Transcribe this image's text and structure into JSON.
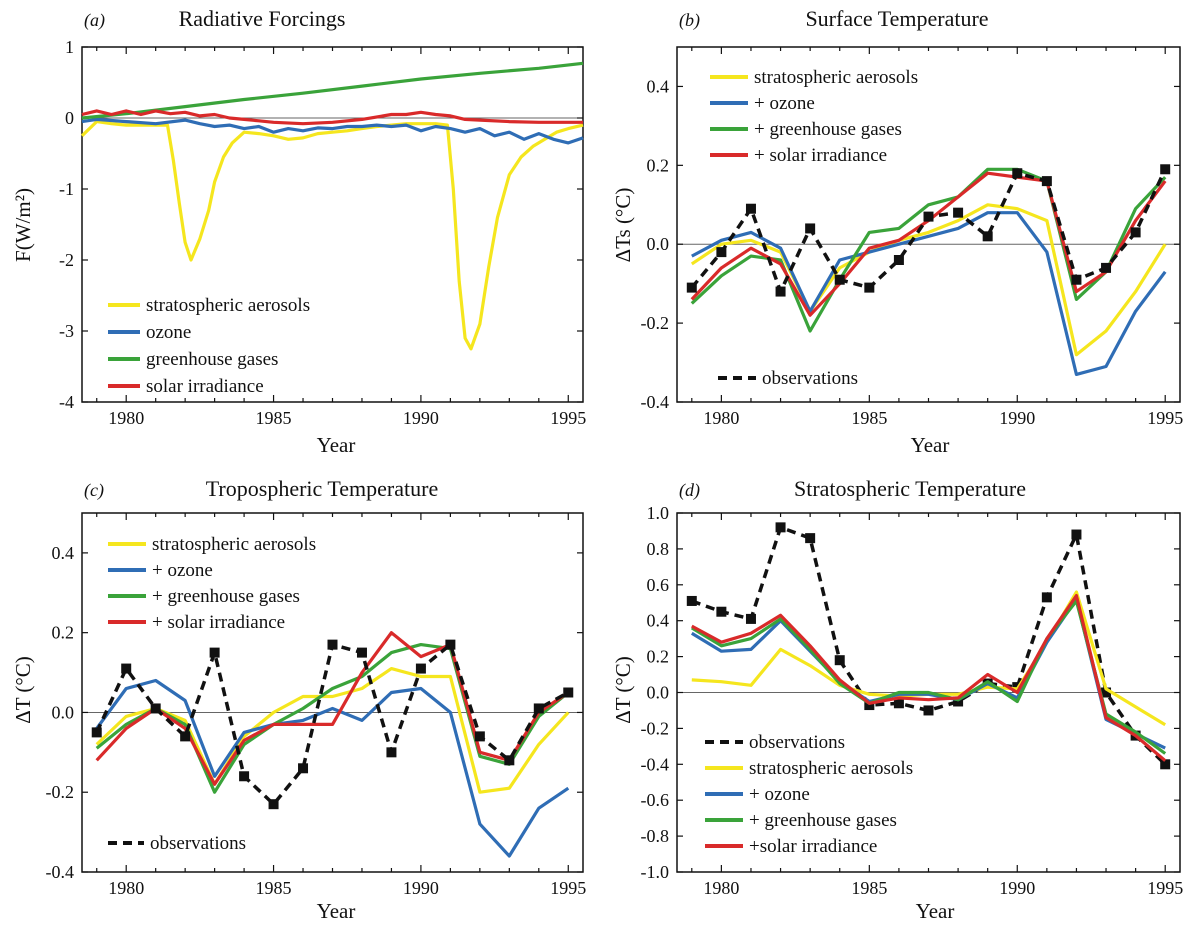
{
  "colors": {
    "yellow": "#f5e61e",
    "blue": "#2f6db5",
    "green": "#3aa33a",
    "red": "#d92a2a",
    "black": "#111111"
  },
  "chart_data": [
    {
      "panel": "(a)",
      "type": "line",
      "title": "Radiative Forcings",
      "xlabel": "Year",
      "ylabel": "F(W/m²)",
      "xlim": [
        1978.5,
        1995.5
      ],
      "ylim": [
        -4,
        1
      ],
      "xticks": [
        1980,
        1985,
        1990,
        1995
      ],
      "yticks": [
        -4,
        -3,
        -2,
        -1,
        0,
        1
      ],
      "ytick_labels": [
        "-4",
        "-3",
        "-2",
        "-1",
        "0",
        "1"
      ],
      "zero_line": true,
      "legend_position": "bottom-left",
      "series": [
        {
          "name": "stratospheric aerosols",
          "color": "#f5e61e",
          "x": [
            1978.5,
            1979,
            1979.5,
            1980,
            1980.5,
            1981,
            1981.4,
            1981.6,
            1981.8,
            1982,
            1982.2,
            1982.5,
            1982.8,
            1983,
            1983.3,
            1983.6,
            1984,
            1984.5,
            1985,
            1985.5,
            1986,
            1986.5,
            1987,
            1987.5,
            1988,
            1988.5,
            1989,
            1989.5,
            1990,
            1990.5,
            1990.9,
            1991.1,
            1991.3,
            1991.5,
            1991.7,
            1992,
            1992.3,
            1992.6,
            1993,
            1993.4,
            1993.8,
            1994.2,
            1994.6,
            1995,
            1995.5
          ],
          "y": [
            -0.25,
            -0.05,
            -0.08,
            -0.1,
            -0.1,
            -0.1,
            -0.1,
            -0.6,
            -1.2,
            -1.75,
            -2.0,
            -1.7,
            -1.3,
            -0.9,
            -0.55,
            -0.35,
            -0.2,
            -0.22,
            -0.25,
            -0.3,
            -0.28,
            -0.22,
            -0.2,
            -0.18,
            -0.15,
            -0.12,
            -0.1,
            -0.08,
            -0.08,
            -0.08,
            -0.1,
            -1.0,
            -2.3,
            -3.1,
            -3.25,
            -2.9,
            -2.1,
            -1.4,
            -0.8,
            -0.55,
            -0.4,
            -0.3,
            -0.2,
            -0.15,
            -0.1
          ]
        },
        {
          "name": "ozone",
          "color": "#2f6db5",
          "x": [
            1978.5,
            1979,
            1980,
            1981,
            1982,
            1982.5,
            1983,
            1983.5,
            1984,
            1984.5,
            1985,
            1985.5,
            1986,
            1986.5,
            1987,
            1987.5,
            1988,
            1988.5,
            1989,
            1989.5,
            1990,
            1990.5,
            1991,
            1991.5,
            1992,
            1992.5,
            1993,
            1993.5,
            1994,
            1994.5,
            1995,
            1995.5
          ],
          "y": [
            -0.05,
            -0.02,
            -0.05,
            -0.08,
            -0.03,
            -0.08,
            -0.12,
            -0.1,
            -0.15,
            -0.12,
            -0.2,
            -0.15,
            -0.18,
            -0.14,
            -0.15,
            -0.12,
            -0.12,
            -0.1,
            -0.12,
            -0.1,
            -0.18,
            -0.12,
            -0.15,
            -0.2,
            -0.15,
            -0.25,
            -0.2,
            -0.3,
            -0.22,
            -0.3,
            -0.35,
            -0.28
          ]
        },
        {
          "name": "greenhouse gases",
          "color": "#3aa33a",
          "x": [
            1978.5,
            1980,
            1982,
            1984,
            1986,
            1988,
            1990,
            1992,
            1994,
            1995.5
          ],
          "y": [
            0.0,
            0.06,
            0.16,
            0.26,
            0.35,
            0.45,
            0.55,
            0.63,
            0.7,
            0.77
          ]
        },
        {
          "name": "solar irradiance",
          "color": "#d92a2a",
          "x": [
            1978.5,
            1979,
            1979.5,
            1980,
            1980.5,
            1981,
            1981.5,
            1982,
            1982.5,
            1983,
            1983.5,
            1984,
            1984.5,
            1985,
            1986,
            1987,
            1988,
            1989,
            1989.5,
            1990,
            1990.5,
            1991,
            1991.5,
            1992,
            1993,
            1994,
            1995,
            1995.5
          ],
          "y": [
            0.05,
            0.1,
            0.05,
            0.1,
            0.05,
            0.1,
            0.06,
            0.08,
            0.03,
            0.05,
            0.0,
            -0.02,
            -0.04,
            -0.06,
            -0.08,
            -0.06,
            -0.02,
            0.05,
            0.05,
            0.08,
            0.05,
            0.03,
            -0.02,
            -0.03,
            -0.05,
            -0.06,
            -0.06,
            -0.06
          ]
        }
      ]
    },
    {
      "panel": "(b)",
      "type": "line",
      "title": "Surface Temperature",
      "xlabel": "Year",
      "ylabel": "ΔTs (°C)",
      "xlim": [
        1978.5,
        1995.5
      ],
      "ylim": [
        -0.4,
        0.5
      ],
      "xticks": [
        1980,
        1985,
        1990,
        1995
      ],
      "yticks": [
        -0.4,
        -0.2,
        0.0,
        0.2,
        0.4
      ],
      "ytick_labels": [
        "-0.4",
        "-0.2",
        "0.0",
        "0.2",
        "0.4"
      ],
      "zero_line": true,
      "legend_position": "top-left",
      "obs_legend_position": "bottom-left",
      "x": [
        1979,
        1980,
        1981,
        1982,
        1983,
        1984,
        1985,
        1986,
        1987,
        1988,
        1989,
        1990,
        1991,
        1992,
        1993,
        1994,
        1995
      ],
      "series": [
        {
          "name": "stratospheric aerosols",
          "color": "#f5e61e",
          "y": [
            -0.05,
            0.0,
            0.01,
            -0.02,
            -0.17,
            -0.06,
            -0.02,
            0.01,
            0.03,
            0.06,
            0.1,
            0.09,
            0.06,
            -0.28,
            -0.22,
            -0.12,
            0.0
          ]
        },
        {
          "name": "+ ozone",
          "color": "#2f6db5",
          "y": [
            -0.03,
            0.01,
            0.03,
            -0.01,
            -0.17,
            -0.04,
            -0.02,
            0.0,
            0.02,
            0.04,
            0.08,
            0.08,
            -0.02,
            -0.33,
            -0.31,
            -0.17,
            -0.07
          ]
        },
        {
          "name": "+ greenhouse gases",
          "color": "#3aa33a",
          "y": [
            -0.15,
            -0.08,
            -0.03,
            -0.04,
            -0.22,
            -0.09,
            0.03,
            0.04,
            0.1,
            0.12,
            0.19,
            0.19,
            0.16,
            -0.14,
            -0.07,
            0.09,
            0.17
          ]
        },
        {
          "name": "+ solar irradiance",
          "color": "#d92a2a",
          "y": [
            -0.14,
            -0.06,
            -0.01,
            -0.05,
            -0.18,
            -0.1,
            -0.01,
            0.01,
            0.06,
            0.12,
            0.18,
            0.17,
            0.16,
            -0.12,
            -0.07,
            0.06,
            0.16
          ]
        },
        {
          "name": "observations",
          "color": "#111111",
          "dashed": true,
          "markers": true,
          "y": [
            -0.11,
            -0.02,
            0.09,
            -0.12,
            0.04,
            -0.09,
            -0.11,
            -0.04,
            0.07,
            0.08,
            0.02,
            0.18,
            0.16,
            -0.09,
            -0.06,
            0.03,
            0.19
          ]
        }
      ]
    },
    {
      "panel": "(c)",
      "type": "line",
      "title": "Tropospheric Temperature",
      "xlabel": "Year",
      "ylabel": "ΔT (°C)",
      "xlim": [
        1978.5,
        1995.5
      ],
      "ylim": [
        -0.4,
        0.5
      ],
      "xticks": [
        1980,
        1985,
        1990,
        1995
      ],
      "yticks": [
        -0.4,
        -0.2,
        0.0,
        0.2,
        0.4
      ],
      "ytick_labels": [
        "-0.4",
        "-0.2",
        "0.0",
        "0.2",
        "0.4"
      ],
      "zero_line": true,
      "legend_position": "top-left",
      "obs_legend_position": "bottom-left",
      "x": [
        1979,
        1980,
        1981,
        1982,
        1983,
        1984,
        1985,
        1986,
        1987,
        1988,
        1989,
        1990,
        1991,
        1992,
        1993,
        1994,
        1995
      ],
      "series": [
        {
          "name": "stratospheric aerosols",
          "color": "#f5e61e",
          "y": [
            -0.08,
            -0.01,
            0.01,
            -0.02,
            -0.18,
            -0.06,
            0.0,
            0.04,
            0.04,
            0.06,
            0.11,
            0.09,
            0.09,
            -0.2,
            -0.19,
            -0.08,
            0.0
          ]
        },
        {
          "name": "+ ozone",
          "color": "#2f6db5",
          "y": [
            -0.04,
            0.06,
            0.08,
            0.03,
            -0.16,
            -0.05,
            -0.03,
            -0.02,
            0.01,
            -0.02,
            0.05,
            0.06,
            0.0,
            -0.28,
            -0.36,
            -0.24,
            -0.19
          ]
        },
        {
          "name": "+ greenhouse gases",
          "color": "#3aa33a",
          "y": [
            -0.09,
            -0.03,
            0.01,
            -0.03,
            -0.2,
            -0.08,
            -0.03,
            0.01,
            0.06,
            0.09,
            0.15,
            0.17,
            0.16,
            -0.11,
            -0.13,
            -0.01,
            0.05
          ]
        },
        {
          "name": "+ solar irradiance",
          "color": "#d92a2a",
          "y": [
            -0.12,
            -0.04,
            0.01,
            -0.04,
            -0.18,
            -0.07,
            -0.03,
            -0.03,
            -0.03,
            0.1,
            0.2,
            0.14,
            0.17,
            -0.1,
            -0.12,
            0.0,
            0.05
          ]
        },
        {
          "name": "observations",
          "color": "#111111",
          "dashed": true,
          "markers": true,
          "y": [
            -0.05,
            0.11,
            0.01,
            -0.06,
            0.15,
            -0.16,
            -0.23,
            -0.14,
            0.17,
            0.15,
            -0.1,
            0.11,
            0.17,
            -0.06,
            -0.12,
            0.01,
            0.05
          ]
        }
      ]
    },
    {
      "panel": "(d)",
      "type": "line",
      "title": "Stratospheric Temperature",
      "xlabel": "Year",
      "ylabel": "ΔT (°C)",
      "xlim": [
        1978.5,
        1995.5
      ],
      "ylim": [
        -1.0,
        1.0
      ],
      "xticks": [
        1980,
        1985,
        1990,
        1995
      ],
      "yticks": [
        -1.0,
        -0.8,
        -0.6,
        -0.4,
        -0.2,
        0.0,
        0.2,
        0.4,
        0.6,
        0.8,
        1.0
      ],
      "ytick_labels": [
        "-1.0",
        "-0.8",
        "-0.6",
        "-0.4",
        "-0.2",
        "0.0",
        "0.2",
        "0.4",
        "0.6",
        "0.8",
        "1.0"
      ],
      "zero_line": true,
      "legend_position": "bottom-left",
      "x": [
        1979,
        1980,
        1981,
        1982,
        1983,
        1984,
        1985,
        1986,
        1987,
        1988,
        1989,
        1990,
        1991,
        1992,
        1993,
        1994,
        1995
      ],
      "series": [
        {
          "name": "observations",
          "color": "#111111",
          "dashed": true,
          "markers": true,
          "y": [
            0.51,
            0.45,
            0.41,
            0.92,
            0.86,
            0.18,
            -0.07,
            -0.06,
            -0.1,
            -0.05,
            0.05,
            0.03,
            0.53,
            0.88,
            0.0,
            -0.24,
            -0.4
          ]
        },
        {
          "name": "stratospheric aerosols",
          "color": "#f5e61e",
          "y": [
            0.07,
            0.06,
            0.04,
            0.24,
            0.15,
            0.04,
            -0.01,
            -0.02,
            -0.01,
            -0.01,
            0.03,
            0.02,
            0.28,
            0.56,
            0.02,
            -0.08,
            -0.18
          ]
        },
        {
          "name": "+ ozone",
          "color": "#2f6db5",
          "y": [
            0.33,
            0.23,
            0.24,
            0.4,
            0.23,
            0.06,
            -0.05,
            -0.01,
            -0.01,
            -0.04,
            0.05,
            -0.03,
            0.28,
            0.52,
            -0.15,
            -0.23,
            -0.31
          ]
        },
        {
          "name": "+ greenhouse gases",
          "color": "#3aa33a",
          "y": [
            0.36,
            0.26,
            0.3,
            0.41,
            0.24,
            0.05,
            -0.06,
            0.0,
            0.0,
            -0.04,
            0.06,
            -0.05,
            0.3,
            0.51,
            -0.12,
            -0.22,
            -0.34
          ]
        },
        {
          "name": "+solar irradiance",
          "color": "#d92a2a",
          "y": [
            0.37,
            0.28,
            0.33,
            0.43,
            0.26,
            0.07,
            -0.06,
            -0.03,
            -0.04,
            -0.03,
            0.1,
            0.0,
            0.3,
            0.54,
            -0.14,
            -0.24,
            -0.38
          ]
        }
      ]
    }
  ]
}
